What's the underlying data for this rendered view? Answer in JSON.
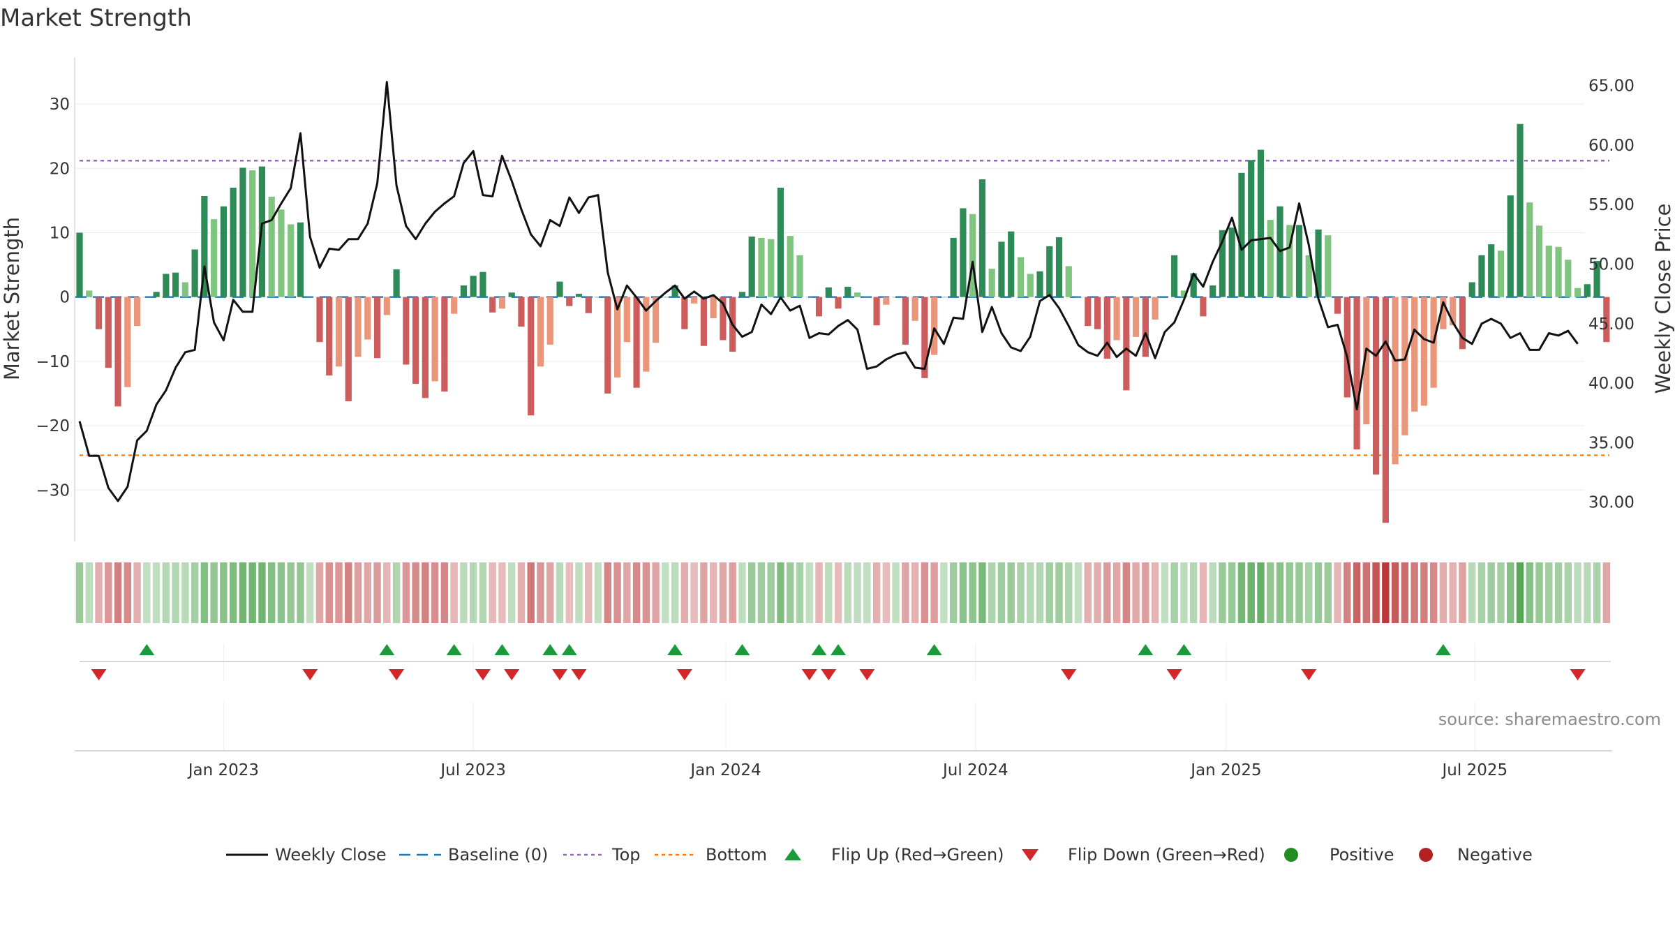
{
  "chart_data": {
    "type": "bar",
    "title": "Market Strength",
    "ylabel_left": "Market Strength",
    "ylabel_right": "Weekly Close Price",
    "source": "source: sharemaestro.com",
    "ylim_left": [
      -38,
      37.5
    ],
    "ylim_right": [
      26.7,
      67.5
    ],
    "left_ticks": [
      30,
      20,
      10,
      0,
      -10,
      -20,
      -30
    ],
    "left_tick_labels": [
      "30",
      "20",
      "10",
      "0",
      "−10",
      "−20",
      "−30"
    ],
    "right_ticks": [
      65,
      60,
      55,
      50,
      45,
      40,
      35,
      30
    ],
    "right_tick_labels": [
      "65.00",
      "60.00",
      "55.00",
      "50.00",
      "45.00",
      "40.00",
      "35.00",
      "30.00"
    ],
    "x_tick_labels": [
      "Jan 2023",
      "Jul 2023",
      "Jan 2024",
      "Jul 2024",
      "Jan 2025",
      "Jul 2025"
    ],
    "x_tick_weeks": [
      15,
      41,
      67.3,
      93.3,
      119.4,
      145.3
    ],
    "top_line": 21.2,
    "bottom_line": -24.6,
    "grid": true,
    "colors": {
      "strong_pos": "#2e8b57",
      "light_pos": "#7fc47f",
      "strong_neg": "#cd5c5c",
      "light_neg": "#e9967a",
      "close_line": "#111111",
      "baseline": "#1f77b4",
      "top": "#9467bd",
      "bottom": "#ff7f0e",
      "flip_up": "#1a9a3a",
      "flip_down": "#d62728",
      "positive": "#228b22",
      "negative": "#b22222"
    },
    "strength": [
      10,
      1,
      -5,
      -11,
      -17,
      -14,
      -4.5,
      0,
      0.8,
      3.6,
      3.8,
      2.3,
      7.4,
      15.7,
      12.1,
      14.1,
      17,
      20.1,
      19.7,
      20.3,
      15.6,
      13.6,
      11.3,
      11.6,
      0,
      -7,
      -12.2,
      -10.8,
      -16.2,
      -9.3,
      -6.6,
      -9.5,
      -2.8,
      4.3,
      -10.5,
      -13.5,
      -15.7,
      -13.1,
      -14.7,
      -2.6,
      1.8,
      3.3,
      3.9,
      -2.4,
      -1.8,
      0.7,
      -4.6,
      -18.4,
      -10.8,
      -7.4,
      2.4,
      -1.4,
      0.5,
      -2.5,
      0,
      -15,
      -12.5,
      -7,
      -14.1,
      -11.6,
      -7.1,
      0,
      1.8,
      -5,
      -1,
      -7.6,
      -3.3,
      -6.7,
      -8.5,
      0.8,
      9.4,
      9.2,
      9,
      17,
      9.5,
      6.5,
      0,
      -3,
      1.5,
      -1.8,
      1.6,
      0.7,
      0,
      -4.4,
      -1.2,
      0,
      -7.4,
      -3.7,
      -12.6,
      -9,
      0,
      9.2,
      13.8,
      12.9,
      18.3,
      4.4,
      8.6,
      10.2,
      6.2,
      3.6,
      4,
      7.9,
      9.3,
      4.8,
      0,
      -4.5,
      -5,
      -9.6,
      -6.7,
      -14.5,
      -6.2,
      -9.3,
      -3.5,
      0,
      6.5,
      1,
      3.7,
      -3,
      1.8,
      10.4,
      10.8,
      19.3,
      21.3,
      22.9,
      12,
      14.1,
      11.2,
      11.2,
      6.5,
      10.5,
      9.6,
      -2.6,
      -15.6,
      -23.7,
      -19.8,
      -27.6,
      -35.1,
      -26,
      -21.5,
      -17.8,
      -16.9,
      -14.1,
      -5,
      -4.4,
      -8.1,
      2.3,
      6.5,
      8.2,
      7.2,
      15.8,
      26.9,
      14.7,
      11.1,
      8,
      7.8,
      5.8,
      1.4,
      2,
      5.6,
      -7
    ],
    "weekly_close": [
      36.8,
      33.9,
      33.9,
      31.2,
      30.1,
      31.3,
      35.2,
      36,
      38.2,
      39.4,
      41.3,
      42.6,
      42.8,
      49.8,
      45.1,
      43.6,
      47,
      46,
      46,
      53.4,
      53.7,
      55.1,
      56.4,
      61,
      52.3,
      49.7,
      51.3,
      51.2,
      52.1,
      52.1,
      53.4,
      56.8,
      65.3,
      56.6,
      53.2,
      52.1,
      53.4,
      54.4,
      55.1,
      55.7,
      58.5,
      59.5,
      55.8,
      55.7,
      59.1,
      57,
      54.6,
      52.5,
      51.5,
      53.7,
      53.2,
      55.6,
      54.3,
      55.6,
      55.8,
      49.3,
      46.2,
      48.2,
      47.2,
      46.1,
      46.9,
      47.6,
      48.2,
      47.1,
      47.7,
      47.1,
      47.4,
      46.7,
      44.9,
      43.9,
      44.3,
      46.6,
      45.8,
      47.2,
      46.1,
      46.5,
      43.8,
      44.2,
      44.1,
      44.8,
      45.3,
      44.5,
      41.2,
      41.4,
      42,
      42.4,
      42.6,
      41.3,
      41.2,
      44.6,
      43.3,
      45.5,
      45.4,
      50.2,
      44.3,
      46.4,
      44.2,
      43,
      42.7,
      43.9,
      46.9,
      47.4,
      46.3,
      44.8,
      43.2,
      42.6,
      42.3,
      43.4,
      42.2,
      42.9,
      42.3,
      44.2,
      42.1,
      44.3,
      45.1,
      47,
      49.2,
      48.1,
      50.2,
      51.9,
      53.9,
      51.2,
      52,
      52.1,
      52.2,
      51.1,
      51.4,
      55.1,
      51.6,
      47.1,
      44.7,
      44.9,
      42.2,
      37.8,
      42.9,
      42.3,
      43.5,
      41.9,
      42,
      44.5,
      43.7,
      43.4,
      46.8,
      45.1,
      43.8,
      43.3,
      45,
      45.4,
      45,
      43.8,
      44.2,
      42.8,
      42.8,
      44.2,
      44,
      44.4,
      43.3
    ],
    "rank_label": "",
    "flip_up_weeks": [
      7,
      32,
      39,
      44,
      49,
      51,
      62,
      69,
      77,
      79,
      89,
      111,
      115,
      142
    ],
    "flip_down_weeks": [
      2,
      24,
      33,
      42,
      45,
      50,
      52,
      63,
      76,
      78,
      82,
      103,
      114,
      128,
      156
    ],
    "legend": [
      {
        "label": "Weekly Close",
        "kind": "line"
      },
      {
        "label": "Baseline (0)",
        "kind": "dash"
      },
      {
        "label": "Top",
        "kind": "dot-purple"
      },
      {
        "label": "Bottom",
        "kind": "dot-orange"
      },
      {
        "label": "Flip Up (Red→Green)",
        "kind": "tri-up"
      },
      {
        "label": "Flip Down (Green→Red)",
        "kind": "tri-down"
      },
      {
        "label": "Positive",
        "kind": "circle-green"
      },
      {
        "label": "Negative",
        "kind": "circle-red"
      }
    ]
  }
}
